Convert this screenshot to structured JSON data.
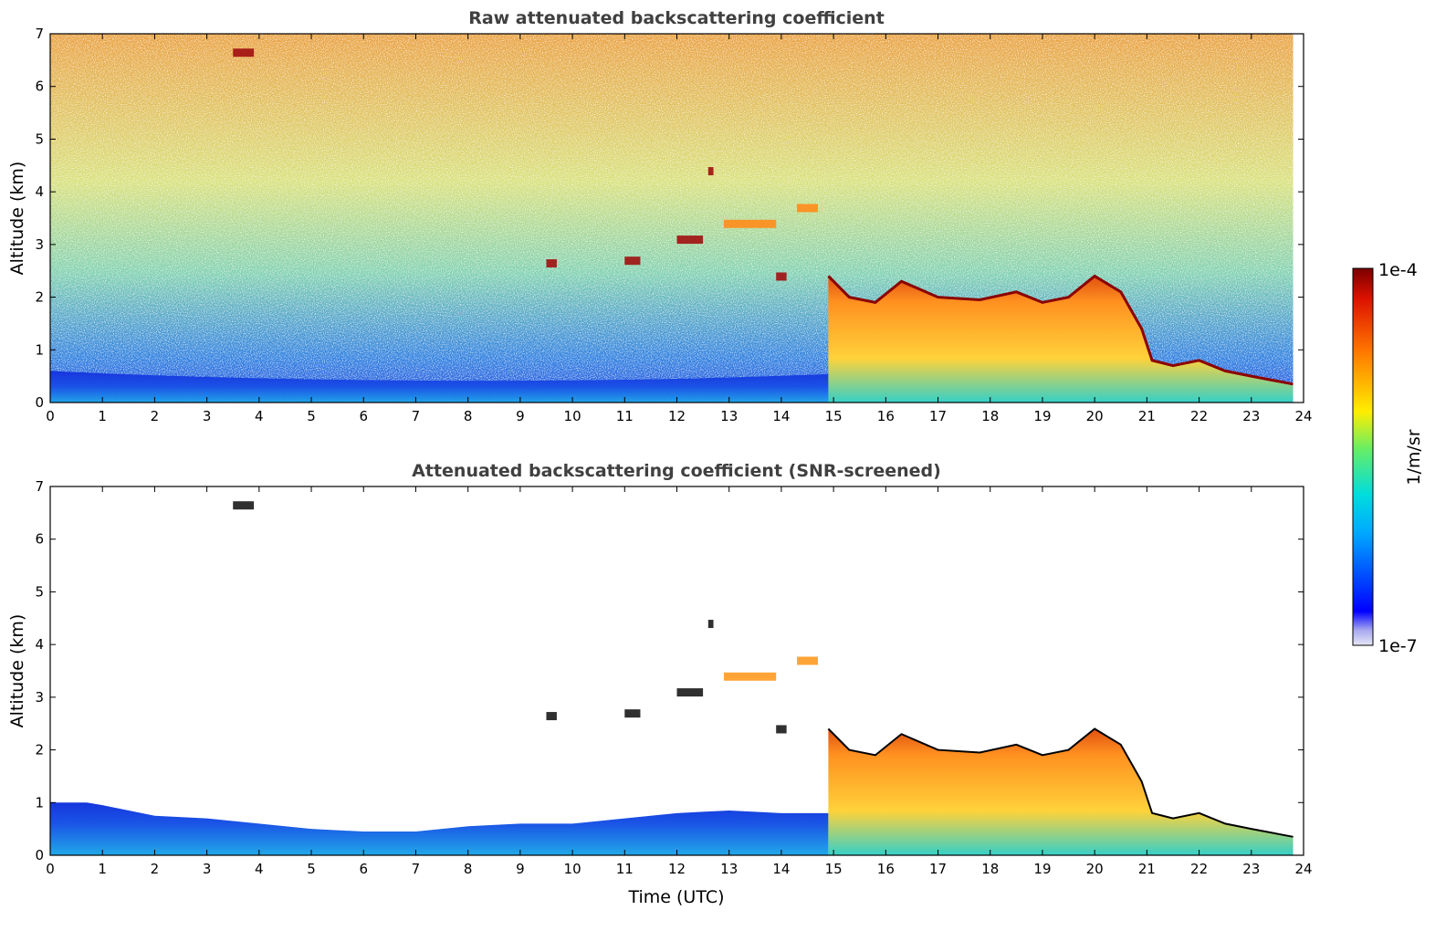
{
  "chart_data": [
    {
      "type": "heatmap",
      "title": "Raw attenuated backscattering coefficient",
      "xlabel": "",
      "ylabel": "Altitude (km)",
      "xlim": [
        0,
        24
      ],
      "ylim": [
        0,
        7
      ],
      "xticks": [
        "0",
        "1",
        "2",
        "3",
        "4",
        "5",
        "6",
        "7",
        "8",
        "9",
        "10",
        "11",
        "12",
        "13",
        "14",
        "15",
        "16",
        "17",
        "18",
        "19",
        "20",
        "21",
        "22",
        "23",
        "24"
      ],
      "yticks": [
        "0",
        "1",
        "2",
        "3",
        "4",
        "5",
        "6",
        "7"
      ],
      "grid": false,
      "colorscale": "jet",
      "regions": [
        {
          "name": "near-surface signal",
          "x": [
            0,
            14.9
          ],
          "y_top_km": 0.6,
          "log10_value": -6.3
        },
        {
          "name": "boundary layer",
          "x": [
            14.9,
            21.1
          ],
          "y_top_km": 2.0,
          "log10_value": -4.9
        },
        {
          "name": "low boundary layer",
          "x": [
            21.1,
            23.8
          ],
          "y_top_km": 0.6,
          "log10_value": -4.5
        },
        {
          "name": "background noise aloft",
          "x": [
            0,
            23.8
          ],
          "y": [
            1,
            7
          ],
          "log10_value": -5.5
        }
      ],
      "boundary_layer_top_km": [
        [
          14.9,
          2.4
        ],
        [
          15.3,
          2.0
        ],
        [
          15.8,
          1.9
        ],
        [
          16.3,
          2.3
        ],
        [
          17.0,
          2.0
        ],
        [
          17.8,
          1.95
        ],
        [
          18.5,
          2.1
        ],
        [
          19.0,
          1.9
        ],
        [
          19.5,
          2.0
        ],
        [
          20.0,
          2.4
        ],
        [
          20.5,
          2.1
        ],
        [
          20.9,
          1.4
        ],
        [
          21.1,
          0.8
        ],
        [
          21.5,
          0.7
        ],
        [
          22.0,
          0.8
        ],
        [
          22.5,
          0.6
        ],
        [
          23.0,
          0.5
        ],
        [
          23.8,
          0.35
        ]
      ],
      "clouds": [
        {
          "x": [
            12.6,
            12.7
          ],
          "y_km": 4.4
        },
        {
          "x": [
            12.9,
            13.9
          ],
          "y_km": 3.4
        },
        {
          "x": [
            13.9,
            14.1
          ],
          "y_km": 2.4
        },
        {
          "x": [
            14.3,
            14.7
          ],
          "y_km": 3.7
        },
        {
          "x": [
            12.0,
            12.5
          ],
          "y_km": 3.1
        },
        {
          "x": [
            11.0,
            11.3
          ],
          "y_km": 2.7
        },
        {
          "x": [
            9.5,
            9.7
          ],
          "y_km": 2.65
        },
        {
          "x": [
            3.5,
            3.9
          ],
          "y_km": 6.65
        }
      ]
    },
    {
      "type": "heatmap",
      "title": "Attenuated backscattering coefficient (SNR-screened)",
      "xlabel": "Time (UTC)",
      "ylabel": "Altitude (km)",
      "xlim": [
        0,
        24
      ],
      "ylim": [
        0,
        7
      ],
      "xticks": [
        "0",
        "1",
        "2",
        "3",
        "4",
        "5",
        "6",
        "7",
        "8",
        "9",
        "10",
        "11",
        "12",
        "13",
        "14",
        "15",
        "16",
        "17",
        "18",
        "19",
        "20",
        "21",
        "22",
        "23",
        "24"
      ],
      "yticks": [
        "0",
        "1",
        "2",
        "3",
        "4",
        "5",
        "6",
        "7"
      ],
      "grid": false,
      "colorscale": "jet",
      "screened_layer_top_km": [
        [
          0,
          1.0
        ],
        [
          0.7,
          1.0
        ],
        [
          1.0,
          0.95
        ],
        [
          2.0,
          0.75
        ],
        [
          3.0,
          0.7
        ],
        [
          4.0,
          0.6
        ],
        [
          5.0,
          0.5
        ],
        [
          6.0,
          0.45
        ],
        [
          7.0,
          0.45
        ],
        [
          8.0,
          0.55
        ],
        [
          9.0,
          0.6
        ],
        [
          10.0,
          0.6
        ],
        [
          11.0,
          0.7
        ],
        [
          12.0,
          0.8
        ],
        [
          13.0,
          0.85
        ],
        [
          14.0,
          0.8
        ],
        [
          14.9,
          0.8
        ]
      ],
      "boundary_layer_top_km": [
        [
          14.9,
          2.4
        ],
        [
          15.3,
          2.0
        ],
        [
          15.8,
          1.9
        ],
        [
          16.3,
          2.3
        ],
        [
          17.0,
          2.0
        ],
        [
          17.8,
          1.95
        ],
        [
          18.5,
          2.1
        ],
        [
          19.0,
          1.9
        ],
        [
          19.5,
          2.0
        ],
        [
          20.0,
          2.4
        ],
        [
          20.5,
          2.1
        ],
        [
          20.9,
          1.4
        ],
        [
          21.1,
          0.8
        ],
        [
          21.5,
          0.7
        ],
        [
          22.0,
          0.8
        ],
        [
          22.5,
          0.6
        ],
        [
          23.0,
          0.5
        ],
        [
          23.8,
          0.35
        ]
      ]
    }
  ],
  "colorbar": {
    "max_label": "1e-4",
    "min_label": "1e-7",
    "unit_label": "1/m/sr",
    "log10_range": [
      -7,
      -4
    ],
    "colorscale": "jet"
  }
}
